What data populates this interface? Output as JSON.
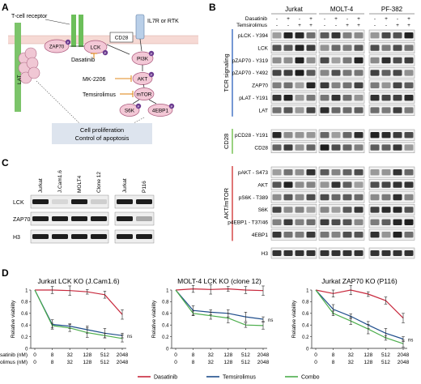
{
  "panel_a": {
    "letter": "A",
    "labels": {
      "tcr": "T-cell receptor",
      "il7r": "IL7R or RTK",
      "zap70": "ZAP70",
      "lck": "LCK",
      "cd28": "CD28",
      "lat": "LAT",
      "pi3k": "PI3K",
      "akt": "AKT",
      "mtor": "mTOR",
      "s6k": "S6K",
      "ebp1": "4EBP1",
      "dasatinib": "Dasatinib",
      "mk2206": "MK-2206",
      "temsirolimus": "Temsirolimus",
      "outcome_line1": "Cell proliferation",
      "outcome_line2": "Control of apoptosis",
      "phospho": "P"
    }
  },
  "panel_b": {
    "letter": "B",
    "cell_lines": [
      "Jurkat",
      "MOLT-4",
      "PF-382"
    ],
    "treatments": {
      "dasatinib": {
        "label": "Dasatinib",
        "signs": [
          "-",
          "+",
          "-",
          "+"
        ]
      },
      "temsirolimus": {
        "label": "Temsirolimus",
        "signs": [
          "-",
          "-",
          "+",
          "+"
        ]
      }
    },
    "groups": [
      {
        "name": "TCR signaling",
        "color": "#3a6cc1",
        "rows": [
          "pLCK - Y394",
          "LCK",
          "pZAP70 - Y319",
          "pZAP70 - Y492",
          "ZAP70",
          "pLAT - Y191",
          "LAT"
        ]
      },
      {
        "name": "CD28",
        "color": "#6fbf4a",
        "rows": [
          "pCD28 - Y191",
          "CD28"
        ]
      },
      {
        "name": "AKT/mTOR",
        "color": "#d23b3b",
        "rows": [
          "pAKT - S473",
          "AKT",
          "pS6K - T389",
          "S6K",
          "p4EBP1 - T37/46",
          "4EBP1"
        ]
      }
    ],
    "loading_control": "H3"
  },
  "panel_c": {
    "letter": "C",
    "blot1": {
      "lanes": [
        "Jurkat",
        "J.Cam1.6",
        "MOLT4",
        "Clone 12"
      ]
    },
    "blot2": {
      "lanes": [
        "Jurkat",
        "P116"
      ]
    },
    "rows": [
      "LCK",
      "ZAP70",
      "H3"
    ]
  },
  "panel_d": {
    "letter": "D",
    "dasatinib_label": "Dasatinib (nM)",
    "temsirolimus_label": "Temsirolimus (nM)",
    "ns_label": "ns",
    "legend": [
      "Dasatinib",
      "Temsirolimus",
      "Combo"
    ],
    "colors": {
      "dasatinib": "#c8283c",
      "temsirolimus": "#1f4e8c",
      "combo": "#4cae4c"
    }
  },
  "chart_data": [
    {
      "type": "line",
      "title": "Jurkat LCK KO (J.Cam1.6)",
      "ylabel": "Relative viability",
      "x": [
        "0",
        "8",
        "32",
        "128",
        "512",
        "2048"
      ],
      "x_secondary": [
        "0",
        "8",
        "32",
        "128",
        "512",
        "2048"
      ],
      "ylim": [
        0,
        1
      ],
      "yticks": [
        "0",
        "0.2",
        "0.4",
        "0.6",
        "0.8",
        "1"
      ],
      "series": [
        {
          "name": "Dasatinib",
          "values": [
            1.0,
            1.0,
            0.99,
            0.97,
            0.92,
            0.58
          ]
        },
        {
          "name": "Temsirolimus",
          "values": [
            1.0,
            0.41,
            0.38,
            0.32,
            0.26,
            0.22
          ]
        },
        {
          "name": "Combo",
          "values": [
            1.0,
            0.39,
            0.35,
            0.27,
            0.22,
            0.17
          ]
        }
      ]
    },
    {
      "type": "line",
      "title": "MOLT-4 LCK KO (clone 12)",
      "ylabel": "Relative viability",
      "x": [
        "0",
        "8",
        "32",
        "128",
        "512",
        "2048"
      ],
      "x_secondary": [
        "0",
        "8",
        "32",
        "128",
        "512",
        "2048"
      ],
      "ylim": [
        0,
        1
      ],
      "yticks": [
        "0",
        "0.2",
        "0.4",
        "0.6",
        "0.8",
        "1"
      ],
      "series": [
        {
          "name": "Dasatinib",
          "values": [
            1.0,
            1.02,
            1.01,
            1.02,
            1.0,
            0.99
          ]
        },
        {
          "name": "Temsirolimus",
          "values": [
            1.0,
            0.65,
            0.62,
            0.6,
            0.54,
            0.5
          ]
        },
        {
          "name": "Combo",
          "values": [
            1.0,
            0.6,
            0.56,
            0.52,
            0.4,
            0.39
          ]
        }
      ]
    },
    {
      "type": "line",
      "title": "Jurkat ZAP70 KO (P116)",
      "ylabel": "Relative viability",
      "x": [
        "0",
        "8",
        "32",
        "128",
        "512",
        "2048"
      ],
      "x_secondary": [
        "0",
        "8",
        "32",
        "128",
        "512",
        "2048"
      ],
      "ylim": [
        0,
        1
      ],
      "yticks": [
        "0",
        "0.2",
        "0.4",
        "0.6",
        "0.8",
        "1"
      ],
      "series": [
        {
          "name": "Dasatinib",
          "values": [
            1.0,
            0.94,
            1.0,
            0.93,
            0.82,
            0.52
          ]
        },
        {
          "name": "Temsirolimus",
          "values": [
            1.0,
            0.67,
            0.55,
            0.4,
            0.26,
            0.16
          ]
        },
        {
          "name": "Combo",
          "values": [
            1.0,
            0.6,
            0.47,
            0.33,
            0.18,
            0.08
          ]
        }
      ]
    }
  ]
}
